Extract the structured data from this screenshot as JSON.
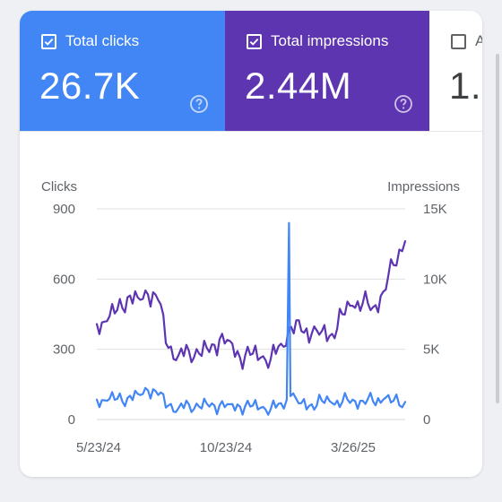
{
  "colors": {
    "clicks": "#4285f4",
    "impressions": "#5e35b1",
    "grid": "#e0e0e0",
    "axis_text": "#5f6368"
  },
  "tiles": [
    {
      "label": "Total clicks",
      "value": "26.7K",
      "checked": true,
      "icon": "help-circle-icon"
    },
    {
      "label": "Total impressions",
      "value": "2.44M",
      "checked": true,
      "icon": "help-circle-icon"
    },
    {
      "label": "A",
      "value": "1.",
      "checked": false
    }
  ],
  "chart_data": {
    "type": "line",
    "title": "",
    "left_axis": {
      "label": "Clicks",
      "ticks": [
        "900",
        "600",
        "300",
        "0"
      ],
      "range": [
        0,
        900
      ]
    },
    "right_axis": {
      "label": "Impressions",
      "ticks": [
        "15K",
        "10K",
        "5K",
        "0"
      ],
      "range": [
        0,
        15000
      ]
    },
    "x_ticks": [
      "5/23/24",
      "10/23/24",
      "3/26/25"
    ],
    "x_range": [
      "2024-05-01",
      "2025-06-27"
    ],
    "grid": true,
    "legend": "none",
    "series": [
      {
        "name": "Clicks",
        "axis": "left",
        "x": [
          "2024-05-01",
          "2024-05-15",
          "2024-05-29",
          "2024-06-12",
          "2024-06-26",
          "2024-07-10",
          "2024-07-24",
          "2024-08-07",
          "2024-08-21",
          "2024-09-04",
          "2024-09-18",
          "2024-10-02",
          "2024-10-16",
          "2024-10-30",
          "2024-11-13",
          "2024-11-27",
          "2024-12-11",
          "2024-12-25",
          "2025-01-08",
          "2025-01-16",
          "2025-01-19",
          "2025-01-21",
          "2025-02-05",
          "2025-02-19",
          "2025-03-05",
          "2025-03-19",
          "2025-04-02",
          "2025-04-16",
          "2025-04-30",
          "2025-05-14",
          "2025-05-28",
          "2025-06-11",
          "2025-06-27"
        ],
        "values": [
          85,
          80,
          88,
          92,
          110,
          125,
          105,
          60,
          50,
          65,
          55,
          55,
          60,
          65,
          55,
          55,
          50,
          45,
          70,
          85,
          840,
          100,
          70,
          65,
          80,
          70,
          75,
          85,
          80,
          78,
          85,
          80,
          75
        ]
      },
      {
        "name": "Impressions",
        "axis": "right",
        "x": [
          "2024-05-01",
          "2024-05-15",
          "2024-05-29",
          "2024-06-12",
          "2024-06-26",
          "2024-07-10",
          "2024-07-24",
          "2024-08-07",
          "2024-08-21",
          "2024-09-04",
          "2024-09-18",
          "2024-10-02",
          "2024-10-16",
          "2024-10-30",
          "2024-11-13",
          "2024-11-27",
          "2024-12-11",
          "2024-12-25",
          "2025-01-08",
          "2025-01-22",
          "2025-02-05",
          "2025-02-19",
          "2025-03-05",
          "2025-03-19",
          "2025-04-02",
          "2025-04-16",
          "2025-04-30",
          "2025-05-14",
          "2025-05-28",
          "2025-06-11",
          "2025-06-27"
        ],
        "values": [
          6800,
          7000,
          7800,
          8700,
          8700,
          8900,
          8500,
          5100,
          4600,
          4900,
          4700,
          4800,
          5700,
          5600,
          4400,
          4600,
          4400,
          4300,
          5400,
          6600,
          6300,
          6100,
          6300,
          6100,
          7500,
          8100,
          8300,
          8000,
          9100,
          11000,
          12700
        ]
      }
    ]
  }
}
